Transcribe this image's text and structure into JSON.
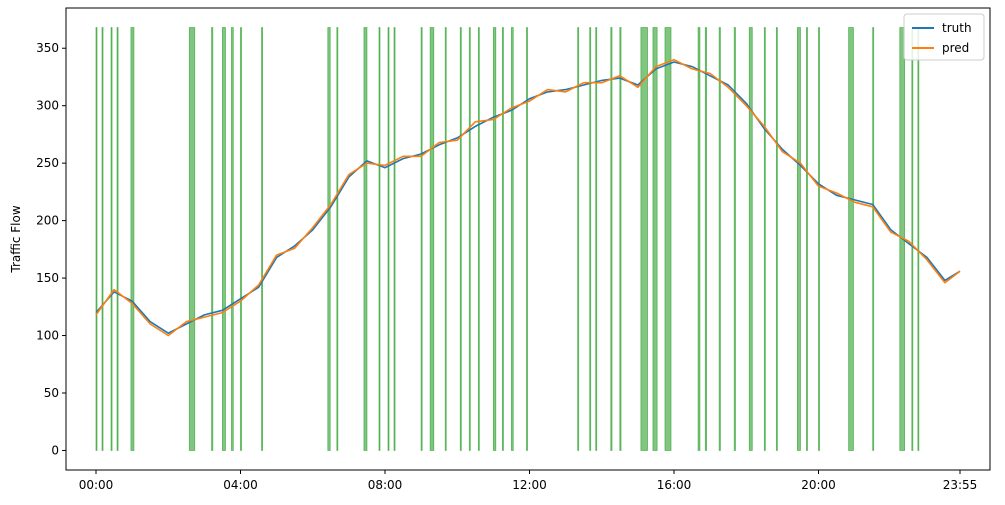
{
  "chart_data": {
    "type": "line",
    "title": "",
    "xlabel": "",
    "ylabel": "Traffic Flow",
    "x_range_minutes": [
      0,
      1435
    ],
    "ylim": [
      -17,
      385
    ],
    "x_ticks": [
      {
        "label": "00:00",
        "minute": 0
      },
      {
        "label": "04:00",
        "minute": 240
      },
      {
        "label": "08:00",
        "minute": 480
      },
      {
        "label": "12:00",
        "minute": 720
      },
      {
        "label": "16:00",
        "minute": 960
      },
      {
        "label": "20:00",
        "minute": 1200
      },
      {
        "label": "23:55",
        "minute": 1435
      }
    ],
    "y_ticks": [
      0,
      50,
      100,
      150,
      200,
      250,
      300,
      350
    ],
    "grid": false,
    "legend": {
      "position": "top-right"
    },
    "colors": {
      "truth": "#1f77b4",
      "pred": "#ff7f0e",
      "highlight": "#2ca02c"
    },
    "series": [
      {
        "name": "truth",
        "x_minutes": [
          0,
          30,
          60,
          90,
          120,
          150,
          180,
          210,
          240,
          270,
          300,
          330,
          360,
          390,
          420,
          450,
          480,
          510,
          540,
          570,
          600,
          630,
          660,
          690,
          720,
          750,
          780,
          810,
          840,
          870,
          900,
          930,
          960,
          990,
          1020,
          1050,
          1080,
          1110,
          1140,
          1170,
          1200,
          1230,
          1260,
          1290,
          1320,
          1350,
          1380,
          1410,
          1435
        ],
        "values": [
          120,
          138,
          130,
          112,
          102,
          110,
          118,
          122,
          132,
          142,
          168,
          178,
          192,
          212,
          238,
          252,
          246,
          254,
          258,
          266,
          272,
          282,
          290,
          296,
          306,
          312,
          314,
          318,
          322,
          324,
          318,
          332,
          338,
          334,
          326,
          318,
          302,
          280,
          262,
          248,
          232,
          222,
          218,
          214,
          192,
          180,
          168,
          148,
          156
        ]
      },
      {
        "name": "pred",
        "x_minutes": [
          0,
          30,
          60,
          90,
          120,
          150,
          180,
          210,
          240,
          270,
          300,
          330,
          360,
          390,
          420,
          450,
          480,
          510,
          540,
          570,
          600,
          630,
          660,
          690,
          720,
          750,
          780,
          810,
          840,
          870,
          900,
          930,
          960,
          990,
          1020,
          1050,
          1080,
          1110,
          1140,
          1170,
          1200,
          1230,
          1260,
          1290,
          1320,
          1350,
          1380,
          1410,
          1435
        ],
        "values": [
          118,
          140,
          128,
          110,
          100,
          112,
          116,
          120,
          130,
          144,
          170,
          176,
          194,
          214,
          240,
          250,
          248,
          256,
          256,
          268,
          270,
          286,
          288,
          298,
          304,
          314,
          312,
          320,
          320,
          326,
          316,
          334,
          340,
          332,
          328,
          316,
          300,
          282,
          260,
          250,
          230,
          224,
          216,
          212,
          190,
          182,
          166,
          146,
          156
        ]
      }
    ],
    "highlight_bands_minutes": [
      [
        0,
        1
      ],
      [
        10,
        11
      ],
      [
        25,
        26
      ],
      [
        35,
        36
      ],
      [
        58,
        63
      ],
      [
        155,
        164
      ],
      [
        192,
        194
      ],
      [
        210,
        215
      ],
      [
        225,
        228
      ],
      [
        240,
        241
      ],
      [
        275,
        276
      ],
      [
        385,
        389
      ],
      [
        400,
        401
      ],
      [
        445,
        450
      ],
      [
        470,
        471
      ],
      [
        485,
        486
      ],
      [
        495,
        496
      ],
      [
        540,
        541
      ],
      [
        555,
        561
      ],
      [
        580,
        581
      ],
      [
        605,
        606
      ],
      [
        620,
        621
      ],
      [
        635,
        636
      ],
      [
        660,
        664
      ],
      [
        675,
        676
      ],
      [
        690,
        693
      ],
      [
        715,
        716
      ],
      [
        800,
        801
      ],
      [
        820,
        821
      ],
      [
        830,
        831
      ],
      [
        855,
        857
      ],
      [
        870,
        872
      ],
      [
        905,
        916
      ],
      [
        925,
        932
      ],
      [
        945,
        955
      ],
      [
        1000,
        1003
      ],
      [
        1012,
        1014
      ],
      [
        1035,
        1037
      ],
      [
        1060,
        1062
      ],
      [
        1085,
        1090
      ],
      [
        1110,
        1111
      ],
      [
        1130,
        1131
      ],
      [
        1165,
        1170
      ],
      [
        1180,
        1181
      ],
      [
        1200,
        1201
      ],
      [
        1250,
        1258
      ],
      [
        1290,
        1291
      ],
      [
        1335,
        1343
      ],
      [
        1355,
        1356
      ],
      [
        1365,
        1366
      ]
    ]
  }
}
